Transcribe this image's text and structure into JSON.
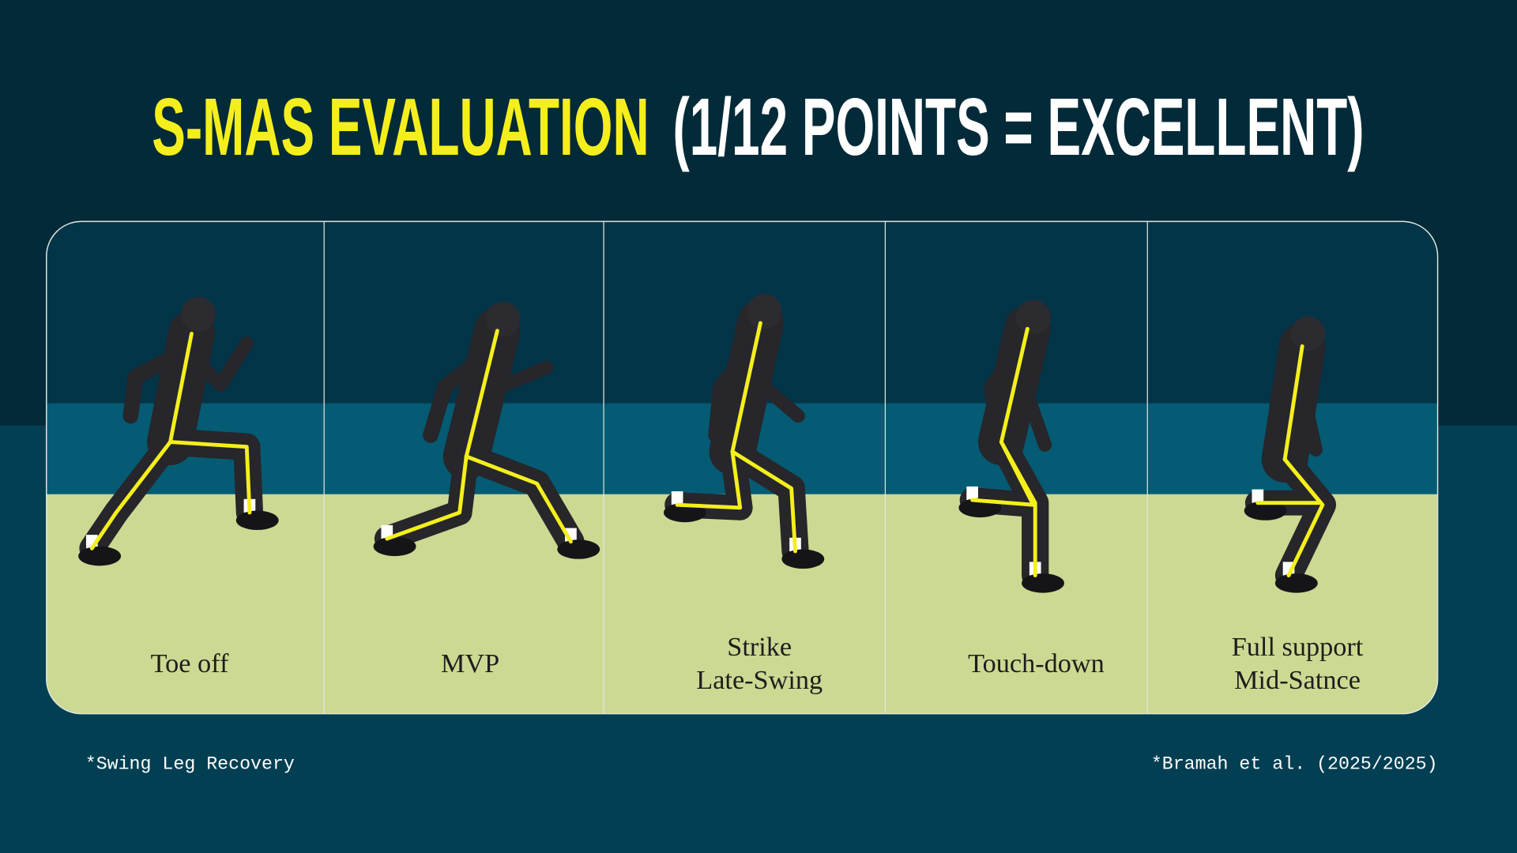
{
  "title": {
    "highlight": "S-MAS EVALUATION",
    "rest": "(1/12 POINTS = EXCELLENT)"
  },
  "phases": [
    {
      "label": [
        "Toe off"
      ]
    },
    {
      "label": [
        "MVP"
      ]
    },
    {
      "label": [
        "Strike",
        "Late-Swing"
      ]
    },
    {
      "label": [
        "Touch-down"
      ]
    },
    {
      "label": [
        "Full support",
        "Mid-Satnce"
      ]
    }
  ],
  "footnotes": {
    "left": "*Swing Leg Recovery",
    "right": "*Bramah et al. (2025/2025)"
  }
}
